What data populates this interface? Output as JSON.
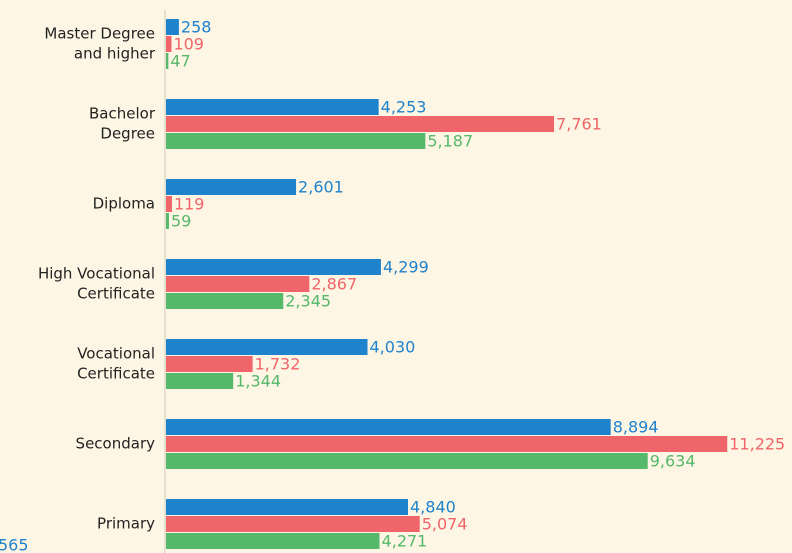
{
  "chart_data": {
    "type": "bar",
    "orientation": "horizontal",
    "categories": [
      [
        "Master Degree",
        "and higher"
      ],
      [
        "Bachelor",
        "Degree"
      ],
      [
        "Diploma"
      ],
      [
        "High Vocational",
        "Certificate"
      ],
      [
        "Vocational",
        "Certificate"
      ],
      [
        "Secondary"
      ],
      [
        "Primary"
      ]
    ],
    "series": [
      {
        "color": "#1f82cc",
        "values": [
          258,
          4253,
          2601,
          4299,
          4030,
          8894,
          4840
        ],
        "value_labels": [
          "258",
          "4,253",
          "2,601",
          "4,299",
          "4,030",
          "8,894",
          "4,840"
        ]
      },
      {
        "color": "#ef6569",
        "values": [
          109,
          7761,
          119,
          2867,
          1732,
          11225,
          5074
        ],
        "value_labels": [
          "109",
          "7,761",
          "119",
          "2,867",
          "1,732",
          "11,225",
          "5,074"
        ]
      },
      {
        "color": "#55b86a",
        "values": [
          47,
          5187,
          59,
          2345,
          1344,
          9634,
          4271
        ],
        "value_labels": [
          "47",
          "5,187",
          "59",
          "2,345",
          "1,344",
          "9,634",
          "4,271"
        ]
      }
    ],
    "xlim": [
      0,
      12540
    ],
    "annotations": [
      {
        "text": "565",
        "color": "#1f82cc"
      }
    ]
  }
}
